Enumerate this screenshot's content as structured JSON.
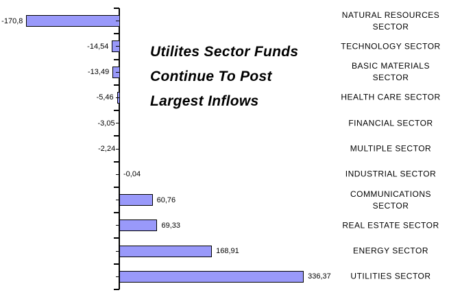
{
  "chart_data": {
    "type": "bar",
    "orientation": "horizontal",
    "title": "Utilites Sector Funds Continue To Post Largest Inflows",
    "title_display": "Utilites Sector Funds\nContinue To Post\nLargest Inflows",
    "categories": [
      "NATURAL RESOURCES SECTOR",
      "TECHNOLOGY SECTOR",
      "BASIC MATERIALS SECTOR",
      "HEALTH CARE SECTOR",
      "FINANCIAL SECTOR",
      "MULTIPLE SECTOR",
      "INDUSTRIAL SECTOR",
      "COMMUNICATIONS SECTOR",
      "REAL ESTATE SECTOR",
      "ENERGY SECTOR",
      "UTILITIES SECTOR"
    ],
    "categories_display": [
      "NATURAL RESOURCES\nSECTOR",
      "TECHNOLOGY SECTOR",
      "BASIC MATERIALS\nSECTOR",
      "HEALTH CARE SECTOR",
      "FINANCIAL SECTOR",
      "MULTIPLE SECTOR",
      "INDUSTRIAL SECTOR",
      "COMMUNICATIONS\nSECTOR",
      "REAL ESTATE SECTOR",
      "ENERGY SECTOR",
      "UTILITIES SECTOR"
    ],
    "values": [
      -170.8,
      -14.54,
      -13.49,
      -5.46,
      -3.05,
      -2.24,
      -0.04,
      60.76,
      69.33,
      168.91,
      336.37
    ],
    "value_labels": [
      "-170,8",
      "-14,54",
      "-13,49",
      "-5,46",
      "-3,05",
      "-2,24",
      "-0,04",
      "60,76",
      "69,33",
      "168,91",
      "336,37"
    ],
    "xlim": [
      -220,
      380
    ],
    "grid": false,
    "legend": "none",
    "bar_color": "#9999FA",
    "bar_border_color": "#000000",
    "axis_color": "#000000",
    "background_color": "#FFFFFF",
    "text_color": "#000000"
  }
}
